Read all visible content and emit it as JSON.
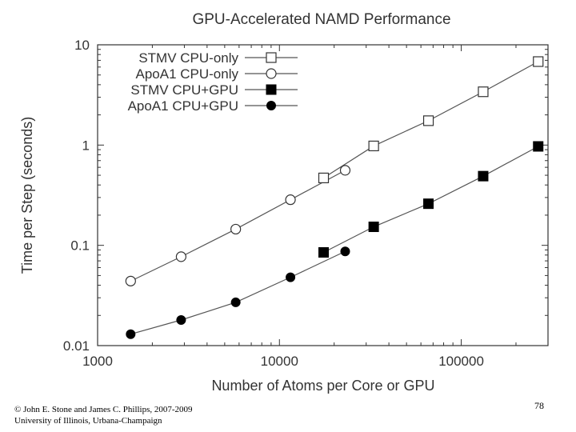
{
  "chart_data": {
    "type": "line",
    "title": "GPU-Accelerated NAMD Performance",
    "xlabel": "Number of Atoms per Core or GPU",
    "ylabel": "Time per Step (seconds)",
    "xscale": "log",
    "yscale": "log",
    "xlim": [
      1000,
      300000
    ],
    "ylim": [
      0.01,
      10
    ],
    "xticks": [
      1000,
      10000,
      100000
    ],
    "xtick_labels": [
      "1000",
      "10000",
      "100000"
    ],
    "yticks": [
      0.01,
      0.1,
      1,
      10
    ],
    "ytick_labels": [
      "0.01",
      "0.1",
      "1",
      "10"
    ],
    "legend_position": "top-left",
    "series": [
      {
        "name": "STMV CPU-only",
        "marker": "open-square",
        "x": [
          17500,
          33000,
          66000,
          132000,
          265000
        ],
        "y": [
          0.47,
          0.98,
          1.75,
          3.4,
          6.8
        ]
      },
      {
        "name": "ApoA1 CPU-only",
        "marker": "open-circle",
        "x": [
          1520,
          2880,
          5750,
          11500,
          23000
        ],
        "y": [
          0.044,
          0.077,
          0.145,
          0.285,
          0.56
        ]
      },
      {
        "name": "STMV CPU+GPU",
        "marker": "filled-square",
        "x": [
          17500,
          33000,
          66000,
          132000,
          265000
        ],
        "y": [
          0.085,
          0.153,
          0.26,
          0.49,
          0.97
        ]
      },
      {
        "name": "ApoA1 CPU+GPU",
        "marker": "filled-circle",
        "x": [
          1520,
          2880,
          5750,
          11500,
          23000
        ],
        "y": [
          0.013,
          0.018,
          0.027,
          0.048,
          0.087
        ]
      }
    ]
  },
  "footer": {
    "credit_line1": "© John E. Stone and James C. Phillips, 2007-2009",
    "credit_line2": "University of Illinois, Urbana-Champaign",
    "slide_number": "78"
  }
}
